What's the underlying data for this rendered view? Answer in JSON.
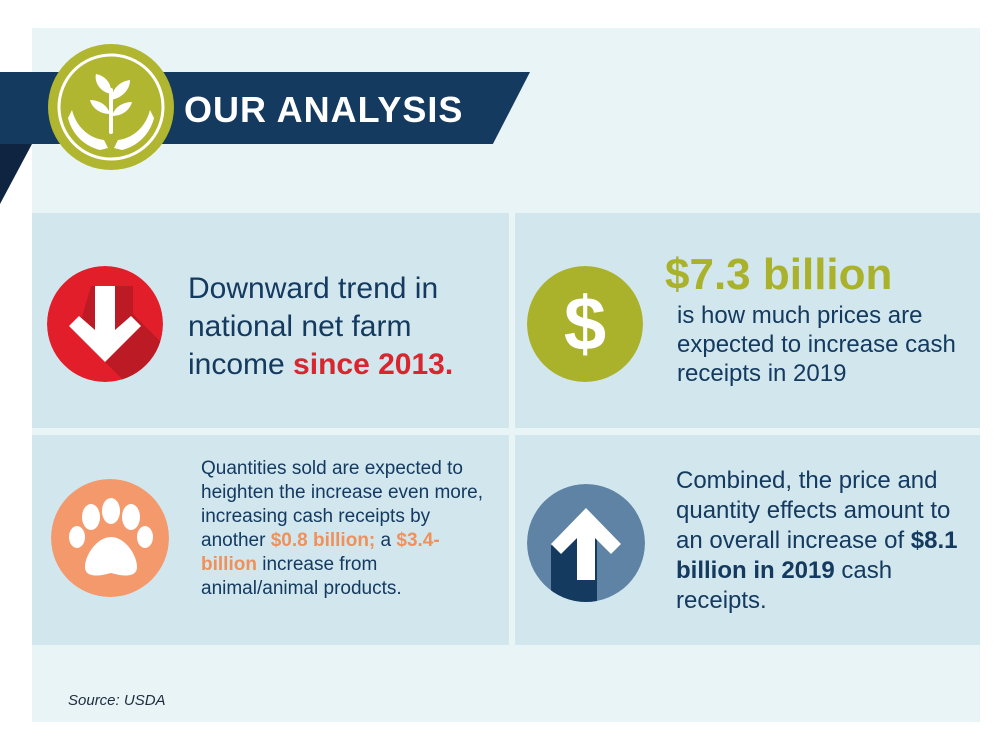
{
  "header": {
    "title": "OUR ANALYSIS",
    "logo_icon": "sprout-hands-icon"
  },
  "colors": {
    "navy": "#143a60",
    "olive": "#b1b631",
    "red": "#e31e2b",
    "orange": "#f3996b",
    "slate": "#5f83a4",
    "card_bg": "#d1e6ed",
    "panel_bg": "#e9f4f7"
  },
  "cards": [
    {
      "icon": "arrow-down-icon",
      "text_before": "Downward trend in national net farm income ",
      "highlight": "since 2013."
    },
    {
      "icon": "dollar-sign-icon",
      "big_value": "$7.3 billion",
      "text": "is how much prices are expected to increase cash receipts in 2019"
    },
    {
      "icon": "paw-print-icon",
      "text_a": "Quantities sold are expected to heighten the increase even more, increasing cash receipts by another ",
      "highlight_a": "$0.8 billion;",
      "text_b": " a ",
      "highlight_b": "$3.4-billion",
      "text_c": " increase from animal/animal products."
    },
    {
      "icon": "arrow-up-icon",
      "text_a": "Combined, the price and quantity effects amount to an overall increase of ",
      "highlight": "$8.1 billion in 2019",
      "text_b": " cash receipts."
    }
  ],
  "source": "Source: USDA"
}
